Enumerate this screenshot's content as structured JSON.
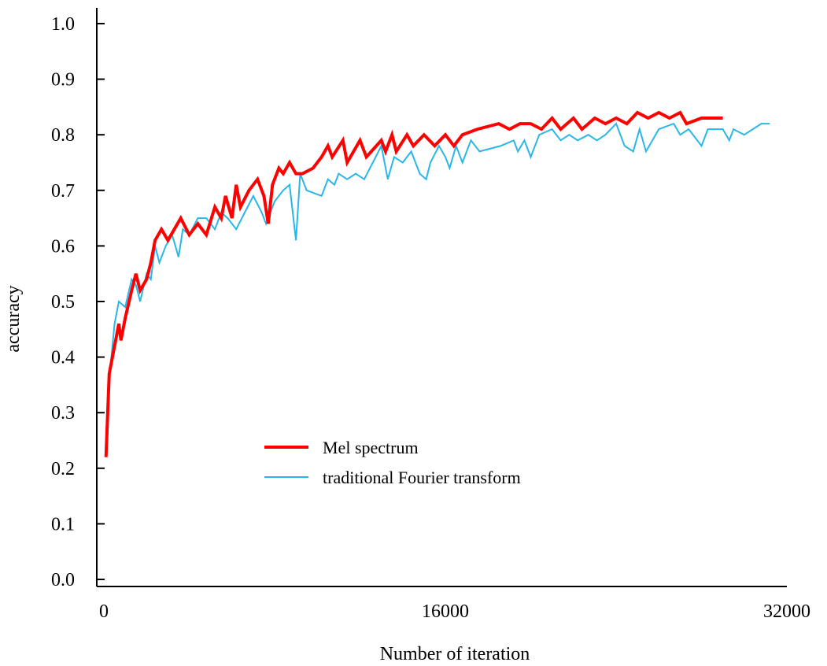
{
  "chart_data": {
    "type": "line",
    "title": "",
    "xlabel": "Number of iteration",
    "ylabel": "accuracy",
    "xlim": [
      0,
      32000
    ],
    "ylim": [
      0,
      1.0
    ],
    "x_ticks": [
      0,
      16000,
      32000
    ],
    "x_tick_labels": [
      "0",
      "16000",
      "32000"
    ],
    "y_ticks": [
      0.0,
      0.1,
      0.2,
      0.3,
      0.4,
      0.5,
      0.6,
      0.7,
      0.8,
      0.9,
      1.0
    ],
    "y_tick_labels": [
      "0.0",
      "0.1",
      "0.2",
      "0.3",
      "0.4",
      "0.5",
      "0.6",
      "0.7",
      "0.8",
      "0.9",
      "1.0"
    ],
    "grid": false,
    "legend_position": "lower-center",
    "series": [
      {
        "name": "Mel spectrum",
        "color": "#ff0000",
        "points": [
          [
            100,
            0.22
          ],
          [
            250,
            0.37
          ],
          [
            500,
            0.42
          ],
          [
            700,
            0.46
          ],
          [
            800,
            0.43
          ],
          [
            1000,
            0.47
          ],
          [
            1300,
            0.52
          ],
          [
            1500,
            0.55
          ],
          [
            1700,
            0.52
          ],
          [
            2000,
            0.54
          ],
          [
            2200,
            0.57
          ],
          [
            2400,
            0.61
          ],
          [
            2700,
            0.63
          ],
          [
            3000,
            0.61
          ],
          [
            3300,
            0.63
          ],
          [
            3600,
            0.65
          ],
          [
            4000,
            0.62
          ],
          [
            4400,
            0.64
          ],
          [
            4800,
            0.62
          ],
          [
            5200,
            0.67
          ],
          [
            5500,
            0.65
          ],
          [
            5700,
            0.69
          ],
          [
            6000,
            0.65
          ],
          [
            6200,
            0.71
          ],
          [
            6400,
            0.67
          ],
          [
            6800,
            0.7
          ],
          [
            7200,
            0.72
          ],
          [
            7500,
            0.69
          ],
          [
            7700,
            0.64
          ],
          [
            7900,
            0.71
          ],
          [
            8200,
            0.74
          ],
          [
            8400,
            0.73
          ],
          [
            8700,
            0.75
          ],
          [
            9000,
            0.73
          ],
          [
            9300,
            0.73
          ],
          [
            9800,
            0.74
          ],
          [
            10200,
            0.76
          ],
          [
            10500,
            0.78
          ],
          [
            10700,
            0.76
          ],
          [
            11200,
            0.79
          ],
          [
            11400,
            0.75
          ],
          [
            12000,
            0.79
          ],
          [
            12300,
            0.76
          ],
          [
            13000,
            0.79
          ],
          [
            13200,
            0.77
          ],
          [
            13500,
            0.8
          ],
          [
            13700,
            0.77
          ],
          [
            14200,
            0.8
          ],
          [
            14500,
            0.78
          ],
          [
            15000,
            0.8
          ],
          [
            15500,
            0.78
          ],
          [
            16000,
            0.8
          ],
          [
            16400,
            0.78
          ],
          [
            16800,
            0.8
          ],
          [
            17500,
            0.81
          ],
          [
            18500,
            0.82
          ],
          [
            19000,
            0.81
          ],
          [
            19500,
            0.82
          ],
          [
            20000,
            0.82
          ],
          [
            20500,
            0.81
          ],
          [
            21000,
            0.83
          ],
          [
            21400,
            0.81
          ],
          [
            22000,
            0.83
          ],
          [
            22400,
            0.81
          ],
          [
            23000,
            0.83
          ],
          [
            23500,
            0.82
          ],
          [
            24000,
            0.83
          ],
          [
            24500,
            0.82
          ],
          [
            25000,
            0.84
          ],
          [
            25500,
            0.83
          ],
          [
            26000,
            0.84
          ],
          [
            26500,
            0.83
          ],
          [
            27000,
            0.84
          ],
          [
            27300,
            0.82
          ],
          [
            28000,
            0.83
          ],
          [
            28500,
            0.83
          ],
          [
            29000,
            0.83
          ]
        ]
      },
      {
        "name": "traditional Fourier transform",
        "color": "#29b6e8",
        "points": [
          [
            100,
            0.24
          ],
          [
            250,
            0.36
          ],
          [
            500,
            0.46
          ],
          [
            700,
            0.5
          ],
          [
            1000,
            0.49
          ],
          [
            1300,
            0.54
          ],
          [
            1500,
            0.53
          ],
          [
            1700,
            0.5
          ],
          [
            2000,
            0.55
          ],
          [
            2200,
            0.54
          ],
          [
            2400,
            0.6
          ],
          [
            2600,
            0.57
          ],
          [
            2900,
            0.6
          ],
          [
            3200,
            0.62
          ],
          [
            3500,
            0.58
          ],
          [
            3700,
            0.63
          ],
          [
            4000,
            0.62
          ],
          [
            4400,
            0.65
          ],
          [
            4800,
            0.65
          ],
          [
            5200,
            0.63
          ],
          [
            5500,
            0.66
          ],
          [
            5800,
            0.65
          ],
          [
            6200,
            0.63
          ],
          [
            6600,
            0.66
          ],
          [
            7000,
            0.69
          ],
          [
            7400,
            0.66
          ],
          [
            7600,
            0.64
          ],
          [
            8000,
            0.68
          ],
          [
            8400,
            0.7
          ],
          [
            8700,
            0.71
          ],
          [
            9000,
            0.61
          ],
          [
            9200,
            0.73
          ],
          [
            9500,
            0.7
          ],
          [
            10200,
            0.69
          ],
          [
            10500,
            0.72
          ],
          [
            10800,
            0.71
          ],
          [
            11000,
            0.73
          ],
          [
            11400,
            0.72
          ],
          [
            11800,
            0.73
          ],
          [
            12200,
            0.72
          ],
          [
            12600,
            0.75
          ],
          [
            13000,
            0.78
          ],
          [
            13300,
            0.72
          ],
          [
            13600,
            0.76
          ],
          [
            14000,
            0.75
          ],
          [
            14400,
            0.77
          ],
          [
            14800,
            0.73
          ],
          [
            15100,
            0.72
          ],
          [
            15300,
            0.75
          ],
          [
            15700,
            0.78
          ],
          [
            16000,
            0.76
          ],
          [
            16200,
            0.74
          ],
          [
            16500,
            0.78
          ],
          [
            16800,
            0.75
          ],
          [
            17200,
            0.79
          ],
          [
            17600,
            0.77
          ],
          [
            18600,
            0.78
          ],
          [
            19200,
            0.79
          ],
          [
            19400,
            0.77
          ],
          [
            19700,
            0.79
          ],
          [
            20000,
            0.76
          ],
          [
            20400,
            0.8
          ],
          [
            21000,
            0.81
          ],
          [
            21400,
            0.79
          ],
          [
            21800,
            0.8
          ],
          [
            22200,
            0.79
          ],
          [
            22700,
            0.8
          ],
          [
            23100,
            0.79
          ],
          [
            23500,
            0.8
          ],
          [
            24000,
            0.82
          ],
          [
            24400,
            0.78
          ],
          [
            24800,
            0.77
          ],
          [
            25100,
            0.81
          ],
          [
            25400,
            0.77
          ],
          [
            26000,
            0.81
          ],
          [
            26700,
            0.82
          ],
          [
            27000,
            0.8
          ],
          [
            27400,
            0.81
          ],
          [
            28000,
            0.78
          ],
          [
            28300,
            0.81
          ],
          [
            29000,
            0.81
          ],
          [
            29300,
            0.79
          ],
          [
            29500,
            0.81
          ],
          [
            30000,
            0.8
          ],
          [
            30800,
            0.82
          ],
          [
            31200,
            0.82
          ]
        ]
      }
    ]
  }
}
